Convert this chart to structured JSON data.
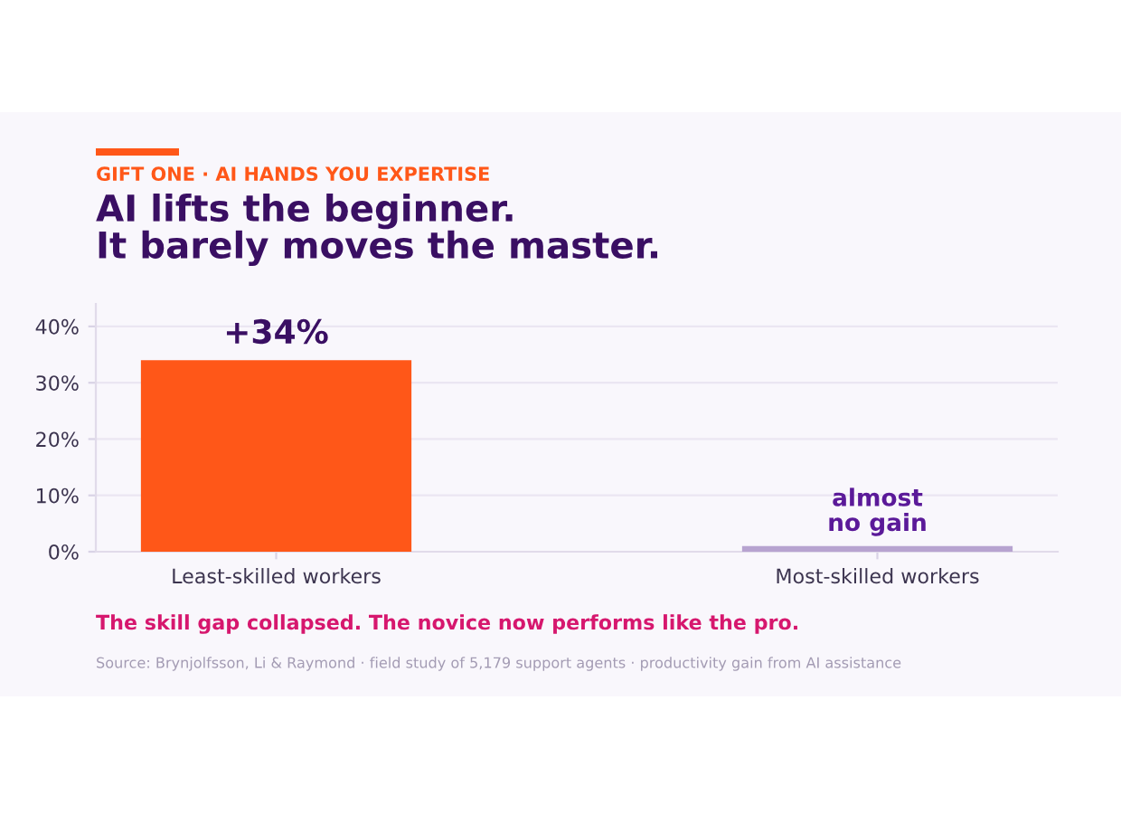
{
  "chart_data": {
    "type": "bar",
    "subtitle": "GIFT ONE · AI HANDS YOU EXPERTISE",
    "title": "AI lifts the beginner.\nIt barely moves the master.",
    "categories": [
      "Least-skilled workers",
      "Most-skilled workers"
    ],
    "values": [
      34,
      1
    ],
    "colors": [
      "#ff5718",
      "#b7a3d0"
    ],
    "value_labels": [
      "+34%",
      "almost\nno gain"
    ],
    "ylim": [
      0,
      44
    ],
    "yticks": [
      {
        "value": 0,
        "label": "0%"
      },
      {
        "value": 10,
        "label": "10%"
      },
      {
        "value": 20,
        "label": "20%"
      },
      {
        "value": 30,
        "label": "30%"
      },
      {
        "value": 40,
        "label": "40%"
      }
    ],
    "grid": "y",
    "annotations": [
      "The skill gap collapsed. The novice now performs like the pro.",
      "Source: Brynjolfsson, Li & Raymond · field study of 5,179 support agents · productivity gain from AI assistance"
    ]
  }
}
